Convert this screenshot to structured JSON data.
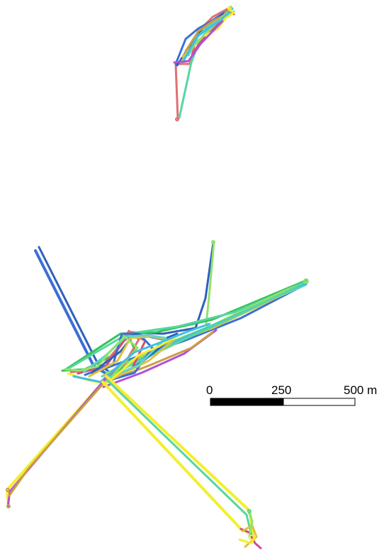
{
  "map": {
    "background": "#ffffff",
    "track_palette": [
      "#3b6fd4",
      "#2f5fbf",
      "#f4ee2f",
      "#b44fd6",
      "#33c45a",
      "#57d6a0",
      "#e0c040",
      "#8fe36a",
      "#c8a040",
      "#5fd4c8",
      "#e07070",
      "#40c0e0",
      "#d6506a",
      "#d04a9c"
    ],
    "track_names": [
      "blue-track",
      "dark-blue-track",
      "yellow-track",
      "purple-track",
      "green-track",
      "teal-track",
      "gold-track",
      "light-green-track",
      "tan-track",
      "cyan-track",
      "salmon-track",
      "sky-track",
      "pink-track",
      "magenta-track"
    ]
  },
  "scale_bar": {
    "labels": [
      "0",
      "250",
      "500 m"
    ],
    "fill_colors": [
      "#000000",
      "#ffffff"
    ]
  }
}
